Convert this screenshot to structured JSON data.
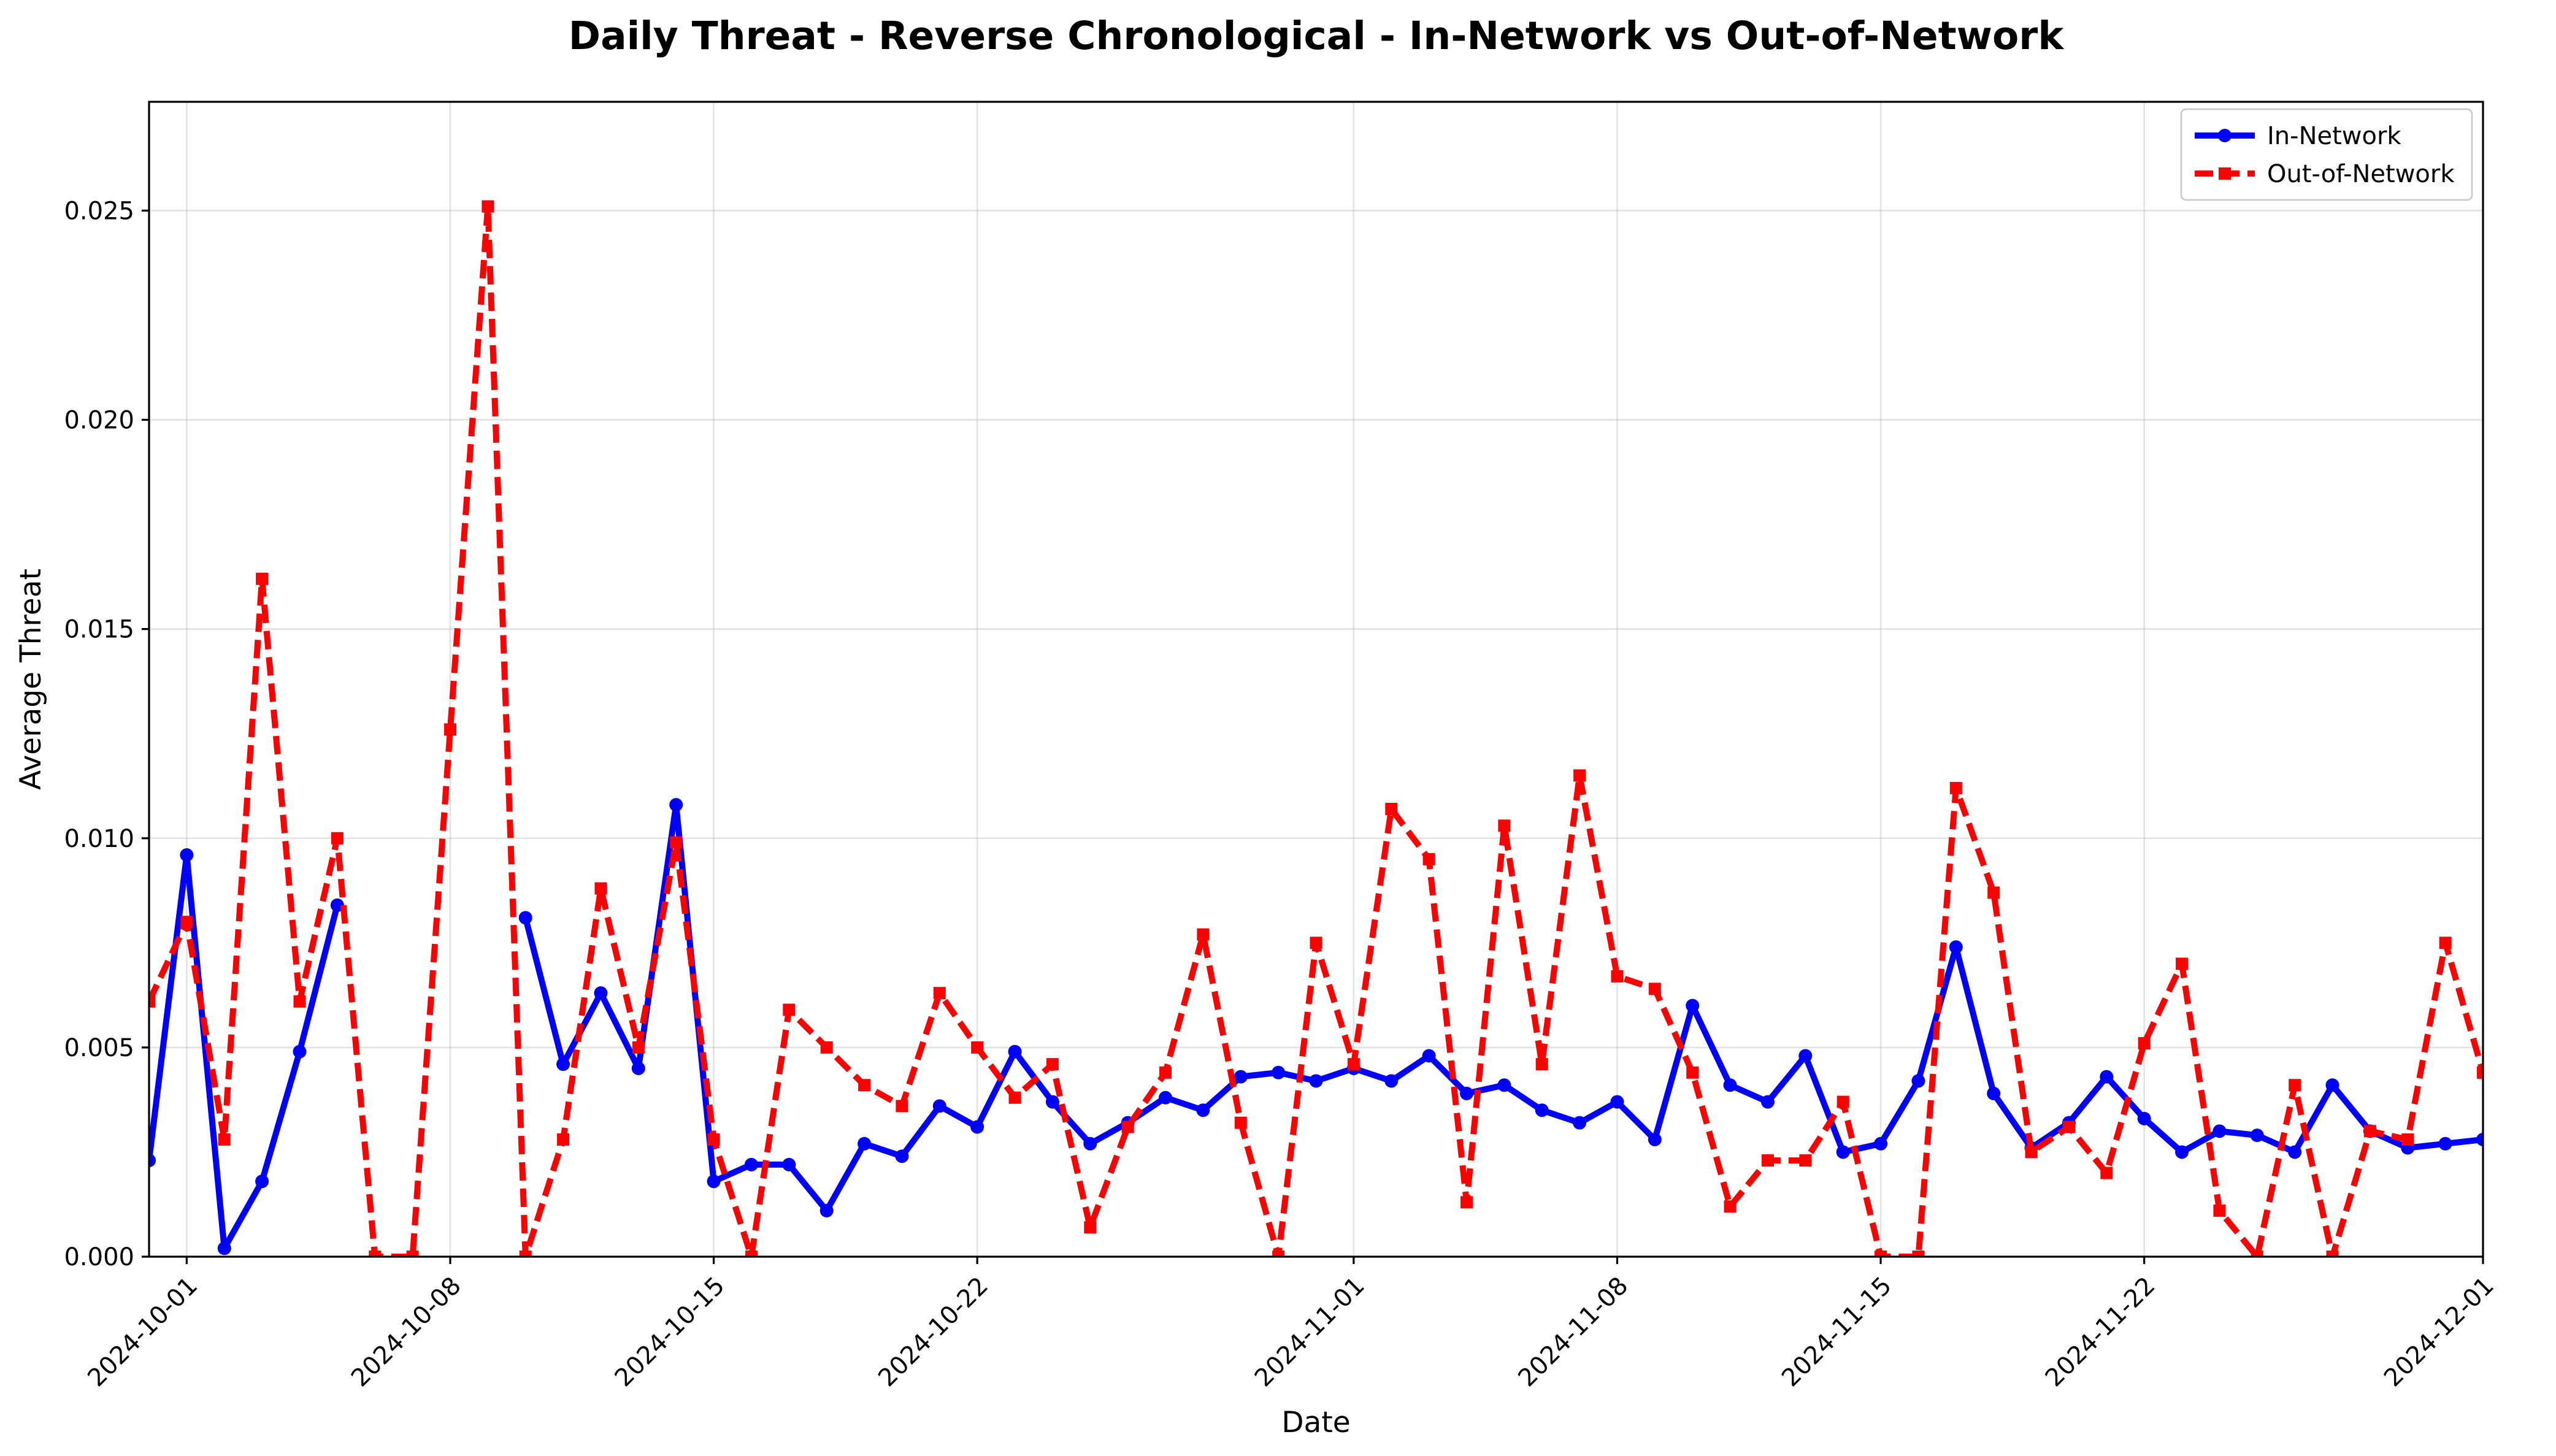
{
  "chart_data": {
    "type": "line",
    "title": "Daily Threat - Reverse Chronological - In-Network vs Out-of-Network",
    "xlabel": "Date",
    "ylabel": "Average Threat",
    "x_start": "2024-09-30",
    "x": [
      "2024-09-30",
      "2024-10-01",
      "2024-10-02",
      "2024-10-03",
      "2024-10-04",
      "2024-10-05",
      "2024-10-06",
      "2024-10-07",
      "2024-10-08",
      "2024-10-09",
      "2024-10-10",
      "2024-10-11",
      "2024-10-12",
      "2024-10-13",
      "2024-10-14",
      "2024-10-15",
      "2024-10-16",
      "2024-10-17",
      "2024-10-18",
      "2024-10-19",
      "2024-10-20",
      "2024-10-21",
      "2024-10-22",
      "2024-10-23",
      "2024-10-24",
      "2024-10-25",
      "2024-10-26",
      "2024-10-27",
      "2024-10-28",
      "2024-10-29",
      "2024-10-30",
      "2024-10-31",
      "2024-11-01",
      "2024-11-02",
      "2024-11-03",
      "2024-11-04",
      "2024-11-05",
      "2024-11-06",
      "2024-11-07",
      "2024-11-08",
      "2024-11-09",
      "2024-11-10",
      "2024-11-11",
      "2024-11-12",
      "2024-11-13",
      "2024-11-14",
      "2024-11-15",
      "2024-11-16",
      "2024-11-17",
      "2024-11-18",
      "2024-11-19",
      "2024-11-20",
      "2024-11-21",
      "2024-11-22",
      "2024-11-23",
      "2024-11-24",
      "2024-11-25",
      "2024-11-26",
      "2024-11-27",
      "2024-11-28",
      "2024-11-29",
      "2024-11-30",
      "2024-12-01"
    ],
    "xlim": [
      "2024-09-30",
      "2024-12-01"
    ],
    "xticks": [
      "2024-10-01",
      "2024-10-08",
      "2024-10-15",
      "2024-10-22",
      "2024-11-01",
      "2024-11-08",
      "2024-11-15",
      "2024-11-22",
      "2024-12-01"
    ],
    "ylim": [
      0,
      0.0276
    ],
    "yticks": [
      "0.000",
      "0.005",
      "0.010",
      "0.015",
      "0.020",
      "0.025"
    ],
    "grid": true,
    "legend_position": "top-right",
    "series": [
      {
        "name": "In-Network",
        "color": "#0000ff",
        "style": "solid",
        "marker": "circle",
        "values": [
          0.0023,
          0.0096,
          0.0002,
          0.0018,
          0.0049,
          0.0084,
          null,
          null,
          null,
          null,
          0.0081,
          0.0046,
          0.0063,
          0.0045,
          0.0108,
          0.0018,
          0.0022,
          0.0022,
          0.0011,
          0.0027,
          0.0024,
          0.0036,
          0.0031,
          0.0049,
          0.0037,
          0.0027,
          0.0032,
          0.0038,
          0.0035,
          0.0043,
          0.0044,
          0.0042,
          0.0045,
          0.0042,
          0.0048,
          0.0039,
          0.0041,
          0.0035,
          0.0032,
          0.0037,
          0.0028,
          0.006,
          0.0041,
          0.0037,
          0.0048,
          0.0025,
          0.0027,
          0.0042,
          0.0074,
          0.0039,
          0.0026,
          0.0032,
          0.0043,
          0.0033,
          0.0025,
          0.003,
          0.0029,
          0.0025,
          0.0041,
          0.003,
          0.0026,
          0.0027,
          0.0028
        ]
      },
      {
        "name": "Out-of-Network",
        "color": "#ff0000",
        "style": "dashed",
        "marker": "square",
        "values": [
          0.0061,
          0.008,
          0.0028,
          0.0162,
          0.0061,
          0.01,
          0.0,
          0.0,
          0.0126,
          0.0251,
          0.0,
          0.0028,
          0.0088,
          0.005,
          0.0099,
          0.0028,
          0.0,
          0.0059,
          0.005,
          0.0041,
          0.0036,
          0.0063,
          0.005,
          0.0038,
          0.0046,
          0.0007,
          0.0031,
          0.0044,
          0.0077,
          0.0032,
          0.0,
          0.0075,
          0.0046,
          0.0107,
          0.0095,
          0.0013,
          0.0103,
          0.0046,
          0.0115,
          0.0067,
          0.0064,
          0.0044,
          0.0012,
          0.0023,
          0.0023,
          0.0037,
          0.0,
          0.0,
          0.0112,
          0.0087,
          0.0025,
          0.0031,
          0.002,
          0.0051,
          0.007,
          0.0011,
          0.0,
          0.0041,
          0.0,
          0.003,
          0.0028,
          0.0075,
          0.0044
        ]
      }
    ]
  }
}
